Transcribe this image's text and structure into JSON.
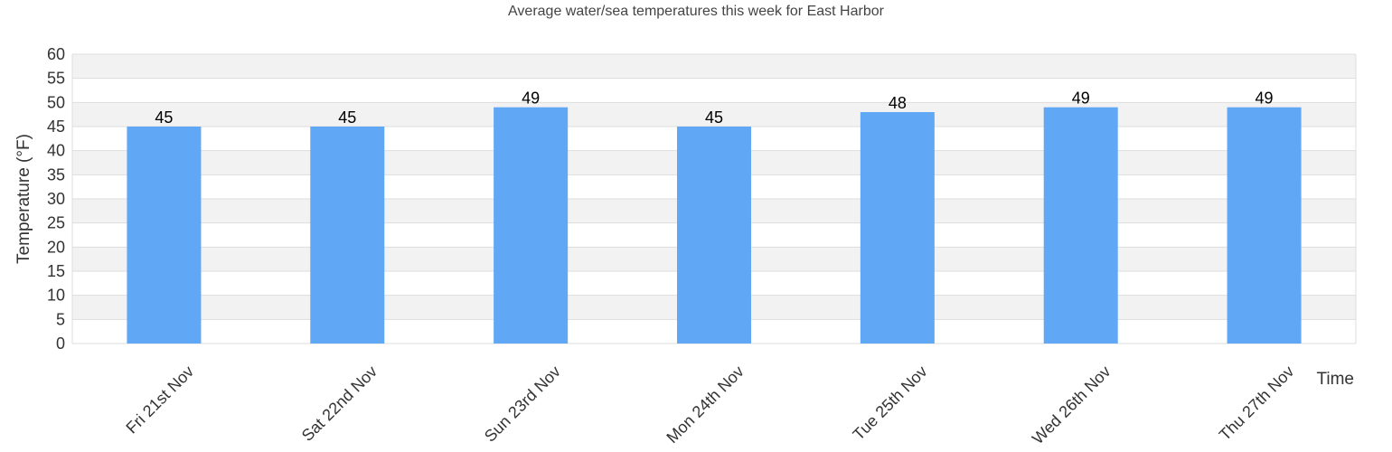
{
  "chart_data": {
    "type": "bar",
    "title": "Average water/sea temperatures this week for East Harbor",
    "xlabel": "Time",
    "ylabel": "Temperature (°F)",
    "categories": [
      "Fri 21st Nov",
      "Sat 22nd Nov",
      "Sun 23rd Nov",
      "Mon 24th Nov",
      "Tue 25th Nov",
      "Wed 26th Nov",
      "Thu 27th Nov"
    ],
    "values": [
      45,
      45,
      49,
      45,
      48,
      49,
      49
    ],
    "ylim": [
      0,
      60
    ],
    "yticks": [
      0,
      5,
      10,
      15,
      20,
      25,
      30,
      35,
      40,
      45,
      50,
      55,
      60
    ],
    "grid": true,
    "legend": "none",
    "colors": {
      "bar": "#60a7f5",
      "band": "#f2f2f2",
      "gridline": "#dddddd"
    }
  }
}
